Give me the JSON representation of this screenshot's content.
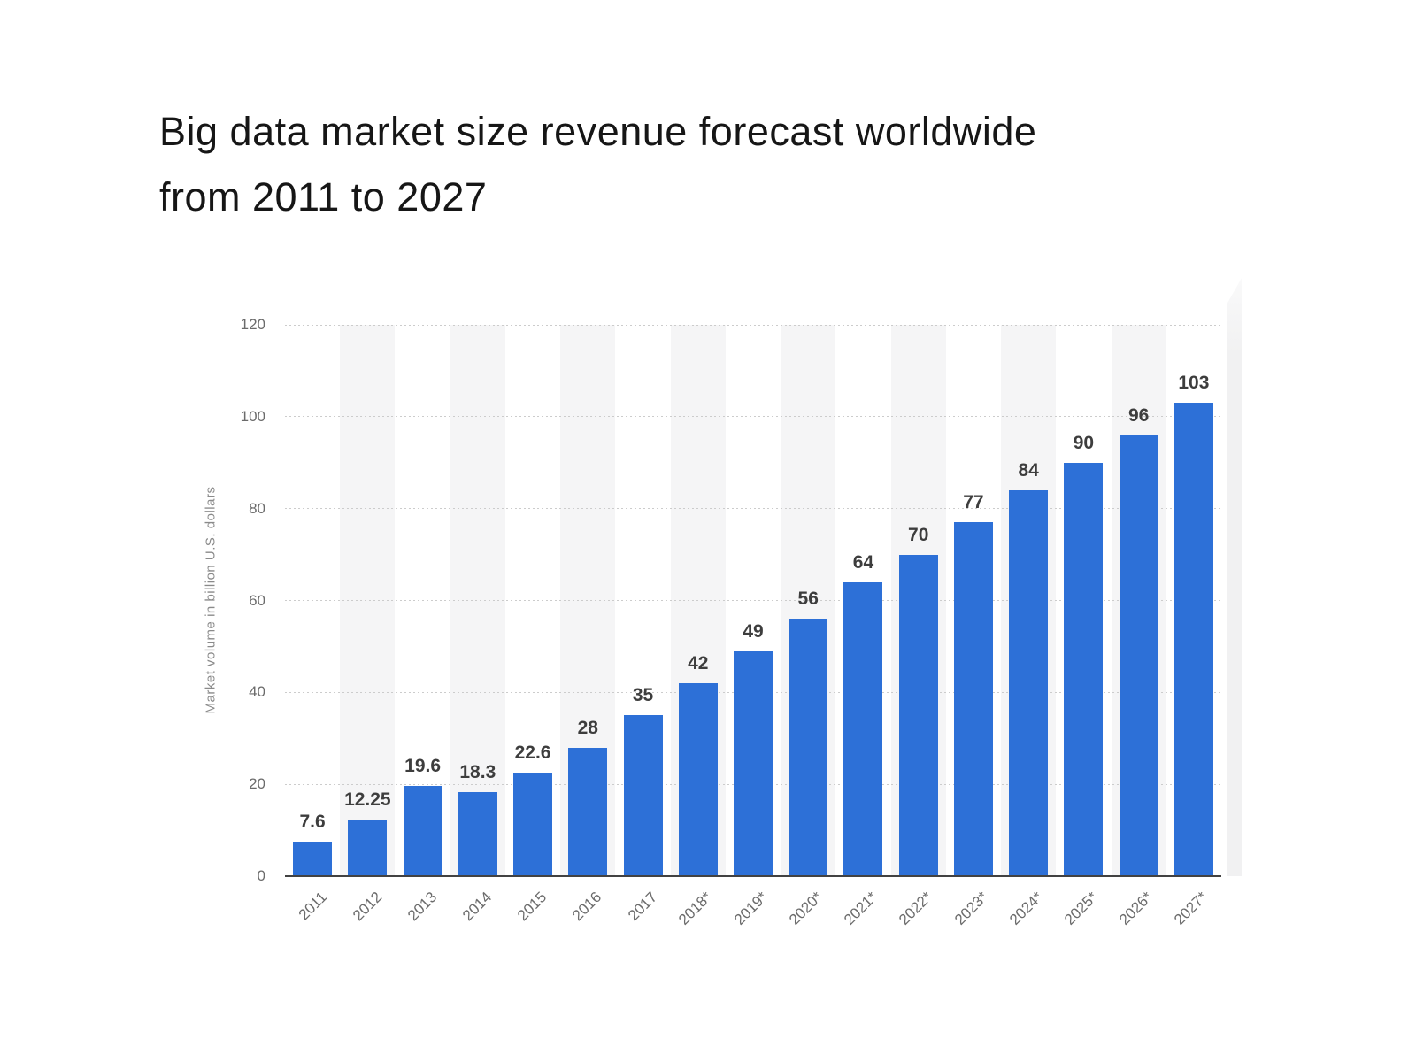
{
  "title": {
    "line1": "Big data market size revenue forecast worldwide",
    "line2": "from 2011 to 2027"
  },
  "chart_data": {
    "type": "bar",
    "title": "Big data market size revenue forecast worldwide from 2011 to 2027",
    "categories": [
      "2011",
      "2012",
      "2013",
      "2014",
      "2015",
      "2016",
      "2017",
      "2018*",
      "2019*",
      "2020*",
      "2021*",
      "2022*",
      "2023*",
      "2024*",
      "2025*",
      "2026*",
      "2027*"
    ],
    "values": [
      7.6,
      12.25,
      19.6,
      18.3,
      22.6,
      28,
      35,
      42,
      49,
      56,
      64,
      70,
      77,
      84,
      90,
      96,
      103
    ],
    "value_labels": [
      "7.6",
      "12.25",
      "19.6",
      "18.3",
      "22.6",
      "28",
      "35",
      "42",
      "49",
      "56",
      "64",
      "70",
      "77",
      "84",
      "90",
      "96",
      "103"
    ],
    "xlabel": "",
    "ylabel": "Market volume in billion U.S. dollars",
    "ylim": [
      0,
      120
    ],
    "yticks": [
      0,
      20,
      40,
      60,
      80,
      100,
      120
    ],
    "ytick_labels": [
      "0",
      "20",
      "40",
      "60",
      "80",
      "100",
      "120"
    ],
    "grid": "horizontal-dotted",
    "legend": "none",
    "bar_color": "#2d70d7",
    "stripe_color": "#f5f5f6",
    "axis_color": "#424242",
    "value_label_color": "#3d3d3d",
    "tick_label_color": "#6b6b6b"
  }
}
